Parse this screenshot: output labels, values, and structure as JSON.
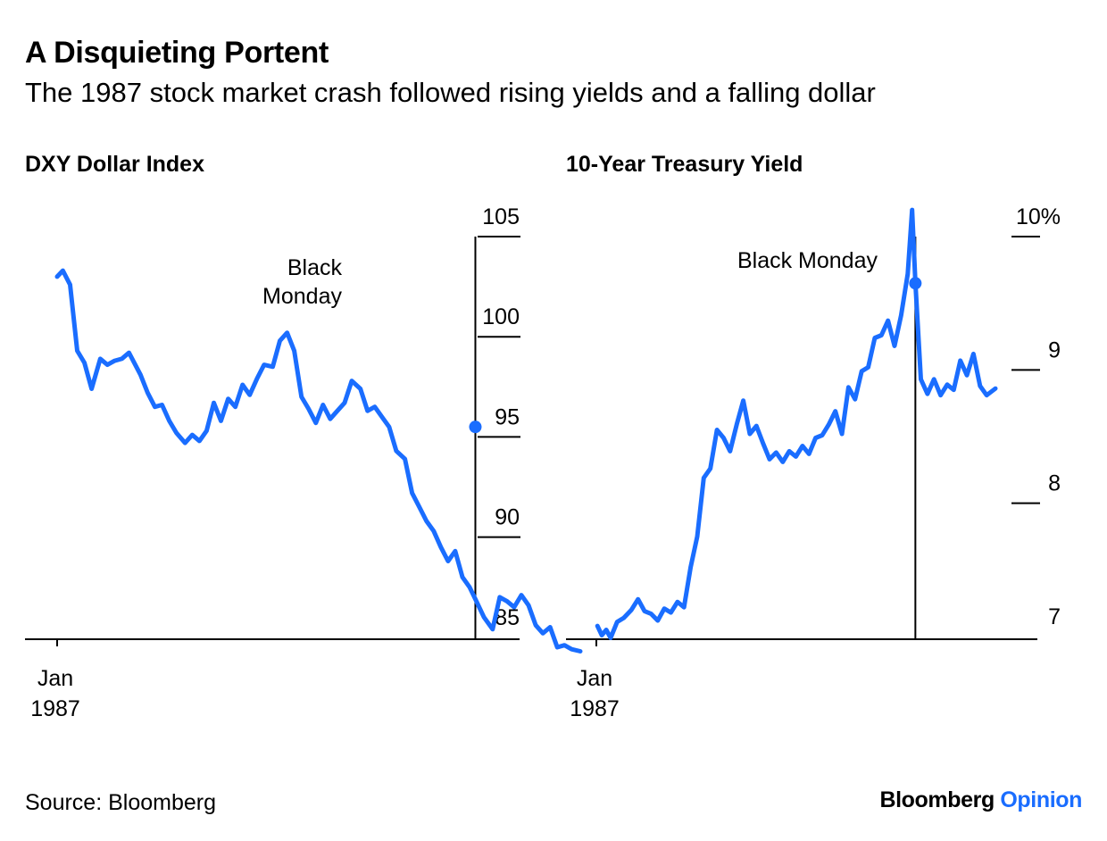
{
  "title": "A Disquieting Portent",
  "subtitle": "The 1987 stock market crash followed rising yields and a falling dollar",
  "source": "Source: Bloomberg",
  "brand": {
    "main": "Bloomberg",
    "accent": "Opinion",
    "accent_color": "#1a6dff"
  },
  "line_color": "#1a6dff",
  "chart_data": [
    {
      "type": "line",
      "title": "DXY Dollar Index",
      "x_tick_labels": [
        {
          "x": "1987-01-01",
          "line1": "Jan",
          "line2": "1987"
        }
      ],
      "xlim": [
        "1987-01-01",
        "1987-12-31"
      ],
      "ylim": [
        84,
        105
      ],
      "y_ticks": [
        {
          "value": 105,
          "label": "105"
        },
        {
          "value": 100,
          "label": "100"
        },
        {
          "value": 95,
          "label": "95"
        },
        {
          "value": 90,
          "label": "90"
        },
        {
          "value": 85,
          "label": "85"
        }
      ],
      "annotation": {
        "date": "1987-10-19",
        "value": 95.5,
        "label_lines": [
          "Black",
          "Monday"
        ]
      },
      "series": [
        {
          "x": [
            "1987-01-01",
            "1987-01-05",
            "1987-01-10",
            "1987-01-15",
            "1987-01-20",
            "1987-01-25",
            "1987-01-31",
            "1987-02-05",
            "1987-02-10",
            "1987-02-15",
            "1987-02-20",
            "1987-02-28",
            "1987-03-05",
            "1987-03-10",
            "1987-03-15",
            "1987-03-20",
            "1987-03-25",
            "1987-03-31",
            "1987-04-05",
            "1987-04-10",
            "1987-04-15",
            "1987-04-20",
            "1987-04-25",
            "1987-04-30",
            "1987-05-05",
            "1987-05-10",
            "1987-05-15",
            "1987-05-20",
            "1987-05-25",
            "1987-05-31",
            "1987-06-05",
            "1987-06-10",
            "1987-06-15",
            "1987-06-20",
            "1987-06-25",
            "1987-06-30",
            "1987-07-05",
            "1987-07-10",
            "1987-07-15",
            "1987-07-20",
            "1987-07-25",
            "1987-07-31",
            "1987-08-05",
            "1987-08-10",
            "1987-08-15",
            "1987-08-20",
            "1987-08-25",
            "1987-08-31",
            "1987-09-05",
            "1987-09-10",
            "1987-09-15",
            "1987-09-20",
            "1987-09-25",
            "1987-09-30",
            "1987-10-05",
            "1987-10-10",
            "1987-10-15",
            "1987-10-19",
            "1987-10-25",
            "1987-10-31",
            "1987-11-05",
            "1987-11-10",
            "1987-11-15",
            "1987-11-20",
            "1987-11-25",
            "1987-11-30",
            "1987-12-05",
            "1987-12-10",
            "1987-12-15",
            "1987-12-20",
            "1987-12-25",
            "1987-12-31"
          ],
          "values": [
            103.0,
            103.3,
            102.6,
            99.3,
            98.7,
            97.4,
            98.9,
            98.6,
            98.8,
            98.9,
            99.2,
            98.1,
            97.2,
            96.5,
            96.6,
            95.8,
            95.2,
            94.7,
            95.1,
            94.8,
            95.3,
            96.7,
            95.8,
            96.9,
            96.5,
            97.6,
            97.1,
            97.9,
            98.6,
            98.5,
            99.8,
            100.2,
            99.3,
            97.0,
            96.4,
            95.7,
            96.6,
            95.9,
            96.3,
            96.7,
            97.8,
            97.4,
            96.3,
            96.5,
            96.0,
            95.5,
            94.3,
            93.9,
            92.2,
            91.5,
            90.8,
            90.3,
            89.5,
            88.8,
            89.3,
            88.0,
            87.5,
            86.9,
            86.0,
            85.4,
            87.0,
            86.8,
            86.5,
            87.1,
            86.6,
            85.6,
            85.2,
            85.5,
            84.5,
            84.6,
            84.4,
            84.3
          ]
        }
      ]
    },
    {
      "type": "line",
      "title": "10-Year Treasury Yield",
      "x_tick_labels": [
        {
          "x": "1987-01-01",
          "line1": "Jan",
          "line2": "1987"
        }
      ],
      "xlim": [
        "1987-01-01",
        "1987-12-31"
      ],
      "ylim": [
        6.98,
        10.2
      ],
      "y_ticks": [
        {
          "value": 10,
          "label": "10%"
        },
        {
          "value": 9,
          "label": "9"
        },
        {
          "value": 8,
          "label": "8"
        },
        {
          "value": 7,
          "label": "7"
        }
      ],
      "annotation": {
        "date": "1987-10-19",
        "value": 9.65,
        "label_lines": [
          "Black Monday"
        ]
      },
      "series": [
        {
          "x": [
            "1987-01-02",
            "1987-01-06",
            "1987-01-10",
            "1987-01-14",
            "1987-01-20",
            "1987-01-26",
            "1987-02-02",
            "1987-02-08",
            "1987-02-14",
            "1987-02-20",
            "1987-02-26",
            "1987-03-04",
            "1987-03-10",
            "1987-03-16",
            "1987-03-22",
            "1987-03-28",
            "1987-04-03",
            "1987-04-09",
            "1987-04-15",
            "1987-04-21",
            "1987-04-27",
            "1987-05-03",
            "1987-05-09",
            "1987-05-15",
            "1987-05-21",
            "1987-05-27",
            "1987-06-02",
            "1987-06-08",
            "1987-06-14",
            "1987-06-20",
            "1987-06-26",
            "1987-07-02",
            "1987-07-08",
            "1987-07-14",
            "1987-07-20",
            "1987-07-26",
            "1987-08-01",
            "1987-08-07",
            "1987-08-13",
            "1987-08-19",
            "1987-08-25",
            "1987-08-31",
            "1987-09-06",
            "1987-09-12",
            "1987-09-18",
            "1987-09-24",
            "1987-09-30",
            "1987-10-06",
            "1987-10-12",
            "1987-10-16",
            "1987-10-19",
            "1987-10-24",
            "1987-10-30",
            "1987-11-05",
            "1987-11-11",
            "1987-11-17",
            "1987-11-23",
            "1987-11-29",
            "1987-12-05",
            "1987-12-11",
            "1987-12-17",
            "1987-12-23",
            "1987-12-31"
          ],
          "values": [
            7.08,
            7.01,
            7.05,
            6.99,
            7.11,
            7.14,
            7.2,
            7.28,
            7.19,
            7.17,
            7.12,
            7.21,
            7.18,
            7.26,
            7.22,
            7.52,
            7.75,
            8.19,
            8.26,
            8.55,
            8.49,
            8.39,
            8.59,
            8.77,
            8.52,
            8.58,
            8.45,
            8.33,
            8.38,
            8.31,
            8.39,
            8.35,
            8.43,
            8.37,
            8.49,
            8.51,
            8.59,
            8.69,
            8.52,
            8.87,
            8.78,
            8.99,
            9.02,
            9.24,
            9.26,
            9.37,
            9.18,
            9.41,
            9.72,
            10.2,
            9.65,
            8.93,
            8.82,
            8.93,
            8.81,
            8.89,
            8.85,
            9.07,
            8.96,
            9.12,
            8.88,
            8.81,
            8.86
          ]
        }
      ]
    }
  ]
}
